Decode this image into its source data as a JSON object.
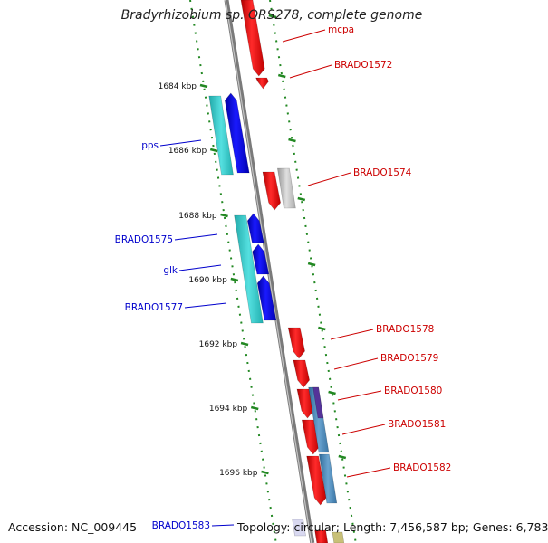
{
  "title": "Bradyrhizobium sp. ORS278, complete genome",
  "footer": {
    "accession_label": "Accession:",
    "accession": "NC_009445",
    "topology_label": "Topology:",
    "topology": "circular",
    "length_label": "Length:",
    "length": "7,456,587 bp",
    "genes_label": "Genes:",
    "genes": "6,783"
  },
  "colors": {
    "backbone": "#8a8a8a",
    "forward_gene": "#ff0000",
    "reverse_gene": "#0000ee",
    "cyan_track": "#33cccc",
    "steel_track": "#4682b4",
    "grey_gene": "#bdbdbd",
    "purple_gene": "#553399",
    "ruler": "#228822",
    "label_forward": "#cc0000",
    "label_reverse": "#0000cc"
  },
  "ticks": [
    "1684 kbp",
    "1686 kbp",
    "1688 kbp",
    "1690 kbp",
    "1692 kbp",
    "1694 kbp",
    "1696 kbp"
  ],
  "labels_right": [
    "mcpa",
    "BRADO1572",
    "BRADO1574",
    "BRADO1578",
    "BRADO1579",
    "BRADO1580",
    "BRADO1581",
    "BRADO1582"
  ],
  "labels_left": [
    "pps",
    "BRADO1575",
    "glk",
    "BRADO1577",
    "BRADO1583"
  ]
}
